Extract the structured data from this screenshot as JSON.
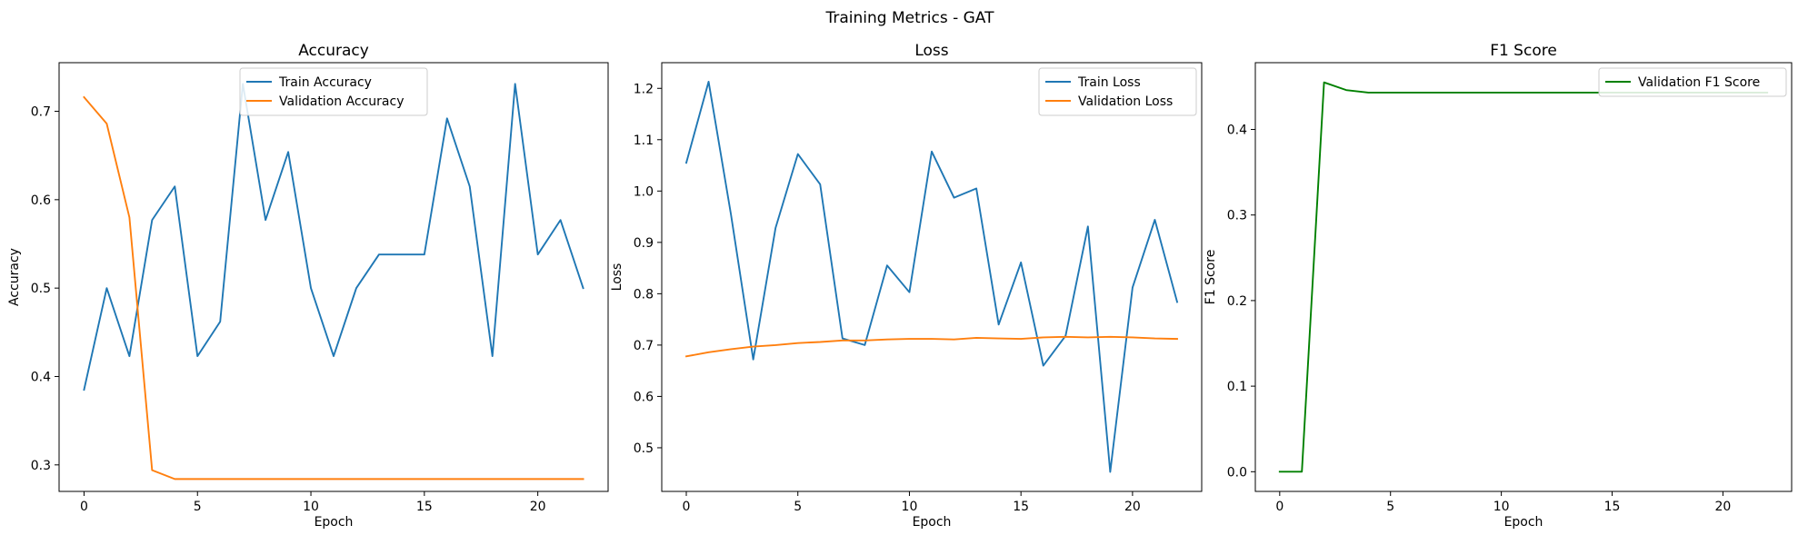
{
  "figure": {
    "title": "Training Metrics - GAT"
  },
  "chart_data": [
    {
      "type": "line",
      "title": "Accuracy",
      "xlabel": "Epoch",
      "ylabel": "Accuracy",
      "xlim": [
        -1.1,
        23.1
      ],
      "ylim": [
        0.27,
        0.755
      ],
      "xticks": [
        0,
        5,
        10,
        15,
        20
      ],
      "yticks": [
        0.3,
        0.4,
        0.5,
        0.6,
        0.7
      ],
      "tick_format": "0.0",
      "legend_position": "top-center",
      "series": [
        {
          "name": "Train Accuracy",
          "color": "#1f77b4",
          "x": [
            0,
            1,
            2,
            3,
            4,
            5,
            6,
            7,
            8,
            9,
            10,
            11,
            12,
            13,
            14,
            15,
            16,
            17,
            18,
            19,
            20,
            21,
            22
          ],
          "y": [
            0.385,
            0.5,
            0.423,
            0.577,
            0.615,
            0.423,
            0.462,
            0.731,
            0.577,
            0.654,
            0.5,
            0.423,
            0.5,
            0.538,
            0.538,
            0.538,
            0.692,
            0.615,
            0.423,
            0.731,
            0.538,
            0.577,
            0.5
          ]
        },
        {
          "name": "Validation Accuracy",
          "color": "#ff7f0e",
          "x": [
            0,
            1,
            2,
            3,
            4,
            5,
            6,
            7,
            8,
            9,
            10,
            11,
            12,
            13,
            14,
            15,
            16,
            17,
            18,
            19,
            20,
            21,
            22
          ],
          "y": [
            0.716,
            0.686,
            0.58,
            0.294,
            0.284,
            0.284,
            0.284,
            0.284,
            0.284,
            0.284,
            0.284,
            0.284,
            0.284,
            0.284,
            0.284,
            0.284,
            0.284,
            0.284,
            0.284,
            0.284,
            0.284,
            0.284,
            0.284
          ]
        }
      ]
    },
    {
      "type": "line",
      "title": "Loss",
      "xlabel": "Epoch",
      "ylabel": "Loss",
      "xlim": [
        -1.1,
        23.1
      ],
      "ylim": [
        0.415,
        1.25
      ],
      "xticks": [
        0,
        5,
        10,
        15,
        20
      ],
      "yticks": [
        0.5,
        0.6,
        0.7,
        0.8,
        0.9,
        1.0,
        1.1,
        1.2
      ],
      "tick_format": "0.0",
      "legend_position": "top-right",
      "series": [
        {
          "name": "Train Loss",
          "color": "#1f77b4",
          "x": [
            0,
            1,
            2,
            3,
            4,
            5,
            6,
            7,
            8,
            9,
            10,
            11,
            12,
            13,
            14,
            15,
            16,
            17,
            18,
            19,
            20,
            21,
            22
          ],
          "y": [
            1.055,
            1.213,
            0.955,
            0.672,
            0.928,
            1.072,
            1.013,
            0.713,
            0.7,
            0.855,
            0.803,
            1.077,
            0.987,
            1.005,
            0.74,
            0.861,
            0.66,
            0.718,
            0.931,
            0.453,
            0.812,
            0.944,
            0.784
          ]
        },
        {
          "name": "Validation Loss",
          "color": "#ff7f0e",
          "x": [
            0,
            1,
            2,
            3,
            4,
            5,
            6,
            7,
            8,
            9,
            10,
            11,
            12,
            13,
            14,
            15,
            16,
            17,
            18,
            19,
            20,
            21,
            22
          ],
          "y": [
            0.678,
            0.686,
            0.692,
            0.697,
            0.7,
            0.704,
            0.706,
            0.709,
            0.709,
            0.711,
            0.712,
            0.712,
            0.711,
            0.714,
            0.713,
            0.712,
            0.715,
            0.716,
            0.715,
            0.716,
            0.715,
            0.713,
            0.712
          ]
        }
      ]
    },
    {
      "type": "line",
      "title": "F1 Score",
      "xlabel": "Epoch",
      "ylabel": "F1 Score",
      "xlim": [
        -1.1,
        23.1
      ],
      "ylim": [
        -0.023,
        0.478
      ],
      "xticks": [
        0,
        5,
        10,
        15,
        20
      ],
      "yticks": [
        0.0,
        0.1,
        0.2,
        0.3,
        0.4
      ],
      "tick_format": "0.0",
      "legend_position": "top-right",
      "series": [
        {
          "name": "Validation F1 Score",
          "color": "#008000",
          "x": [
            0,
            1,
            2,
            3,
            4,
            5,
            6,
            7,
            8,
            9,
            10,
            11,
            12,
            13,
            14,
            15,
            16,
            17,
            18,
            19,
            20,
            21,
            22
          ],
          "y": [
            0.0,
            0.0,
            0.455,
            0.446,
            0.443,
            0.443,
            0.443,
            0.443,
            0.443,
            0.443,
            0.443,
            0.443,
            0.443,
            0.443,
            0.443,
            0.443,
            0.443,
            0.443,
            0.443,
            0.443,
            0.443,
            0.443,
            0.443
          ]
        }
      ]
    }
  ]
}
